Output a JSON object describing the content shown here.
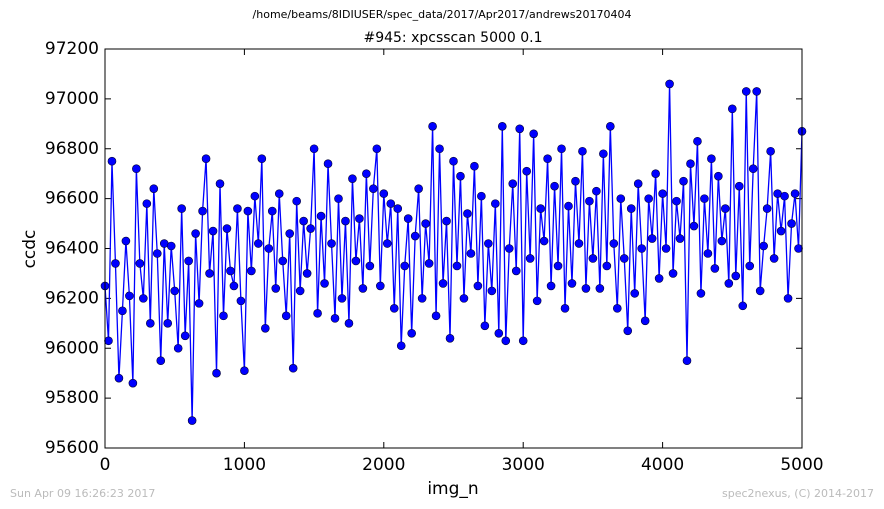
{
  "chart_data": {
    "type": "line",
    "suptitle": "/home/beams/8IDIUSER/spec_data/2017/Apr2017/andrews20170404",
    "title": "#945: xpcsscan 5000 0.1",
    "x_label": "img_n",
    "y_label": "ccdc",
    "footer_left": "Sun Apr 09 16:26:23 2017",
    "footer_right": "spec2nexus, (C) 2014-2017",
    "xlim": [
      0,
      5000
    ],
    "xticks": [
      0,
      1000,
      2000,
      3000,
      4000,
      5000
    ],
    "ylim": [
      95600,
      97200
    ],
    "yticks": [
      95600,
      95800,
      96000,
      96200,
      96400,
      96600,
      96800,
      97000,
      97200
    ],
    "grid": false,
    "color": "#0000ff",
    "x": [
      0,
      25,
      50,
      75,
      100,
      125,
      150,
      175,
      200,
      225,
      250,
      275,
      300,
      325,
      350,
      375,
      400,
      425,
      450,
      475,
      500,
      525,
      550,
      575,
      600,
      625,
      650,
      675,
      700,
      725,
      750,
      775,
      800,
      825,
      850,
      875,
      900,
      925,
      950,
      975,
      1000,
      1025,
      1050,
      1075,
      1100,
      1125,
      1150,
      1175,
      1200,
      1225,
      1250,
      1275,
      1300,
      1325,
      1350,
      1375,
      1400,
      1425,
      1450,
      1475,
      1500,
      1525,
      1550,
      1575,
      1600,
      1625,
      1650,
      1675,
      1700,
      1725,
      1750,
      1775,
      1800,
      1825,
      1850,
      1875,
      1900,
      1925,
      1950,
      1975,
      2000,
      2025,
      2050,
      2075,
      2100,
      2125,
      2150,
      2175,
      2200,
      2225,
      2250,
      2275,
      2300,
      2325,
      2350,
      2375,
      2400,
      2425,
      2450,
      2475,
      2500,
      2525,
      2550,
      2575,
      2600,
      2625,
      2650,
      2675,
      2700,
      2725,
      2750,
      2775,
      2800,
      2825,
      2850,
      2875,
      2900,
      2925,
      2950,
      2975,
      3000,
      3025,
      3050,
      3075,
      3100,
      3125,
      3150,
      3175,
      3200,
      3225,
      3250,
      3275,
      3300,
      3325,
      3350,
      3375,
      3400,
      3425,
      3450,
      3475,
      3500,
      3525,
      3550,
      3575,
      3600,
      3625,
      3650,
      3675,
      3700,
      3725,
      3750,
      3775,
      3800,
      3825,
      3850,
      3875,
      3900,
      3925,
      3950,
      3975,
      4000,
      4025,
      4050,
      4075,
      4100,
      4125,
      4150,
      4175,
      4200,
      4225,
      4250,
      4275,
      4300,
      4325,
      4350,
      4375,
      4400,
      4425,
      4450,
      4475,
      4500,
      4525,
      4550,
      4575,
      4600,
      4625,
      4650,
      4675,
      4700,
      4725,
      4750,
      4775,
      4800,
      4825,
      4850,
      4875,
      4900,
      4925,
      4950,
      4975,
      5000
    ],
    "values": [
      96250,
      96030,
      96750,
      96340,
      95880,
      96150,
      96430,
      96210,
      95860,
      96720,
      96340,
      96200,
      96580,
      96100,
      96640,
      96380,
      95950,
      96420,
      96100,
      96410,
      96230,
      96000,
      96560,
      96050,
      96350,
      95710,
      96460,
      96180,
      96550,
      96760,
      96300,
      96470,
      95900,
      96660,
      96130,
      96480,
      96310,
      96250,
      96560,
      96190,
      95910,
      96550,
      96310,
      96610,
      96420,
      96760,
      96080,
      96400,
      96550,
      96240,
      96620,
      96350,
      96130,
      96460,
      95920,
      96590,
      96230,
      96510,
      96300,
      96480,
      96800,
      96140,
      96530,
      96260,
      96740,
      96420,
      96120,
      96600,
      96200,
      96510,
      96100,
      96680,
      96350,
      96520,
      96240,
      96700,
      96330,
      96640,
      96800,
      96250,
      96620,
      96420,
      96580,
      96160,
      96560,
      96010,
      96330,
      96520,
      96060,
      96450,
      96640,
      96200,
      96500,
      96340,
      96890,
      96130,
      96800,
      96260,
      96510,
      96040,
      96750,
      96330,
      96690,
      96200,
      96540,
      96380,
      96730,
      96250,
      96610,
      96090,
      96420,
      96230,
      96580,
      96060,
      96890,
      96030,
      96400,
      96660,
      96310,
      96880,
      96030,
      96710,
      96360,
      96860,
      96190,
      96560,
      96430,
      96760,
      96250,
      96650,
      96330,
      96800,
      96160,
      96570,
      96260,
      96670,
      96420,
      96790,
      96240,
      96590,
      96360,
      96630,
      96240,
      96780,
      96330,
      96890,
      96420,
      96160,
      96600,
      96360,
      96070,
      96560,
      96220,
      96660,
      96400,
      96110,
      96600,
      96440,
      96700,
      96280,
      96620,
      96400,
      97060,
      96300,
      96590,
      96440,
      96670,
      95950,
      96740,
      96490,
      96830,
      96220,
      96600,
      96380,
      96760,
      96320,
      96690,
      96430,
      96560,
      96260,
      96960,
      96290,
      96650,
      96170,
      97030,
      96330,
      96720,
      97030,
      96230,
      96410,
      96560,
      96790,
      96360,
      96620,
      96470,
      96610,
      96200,
      96500,
      96620,
      96400,
      96870
    ]
  }
}
